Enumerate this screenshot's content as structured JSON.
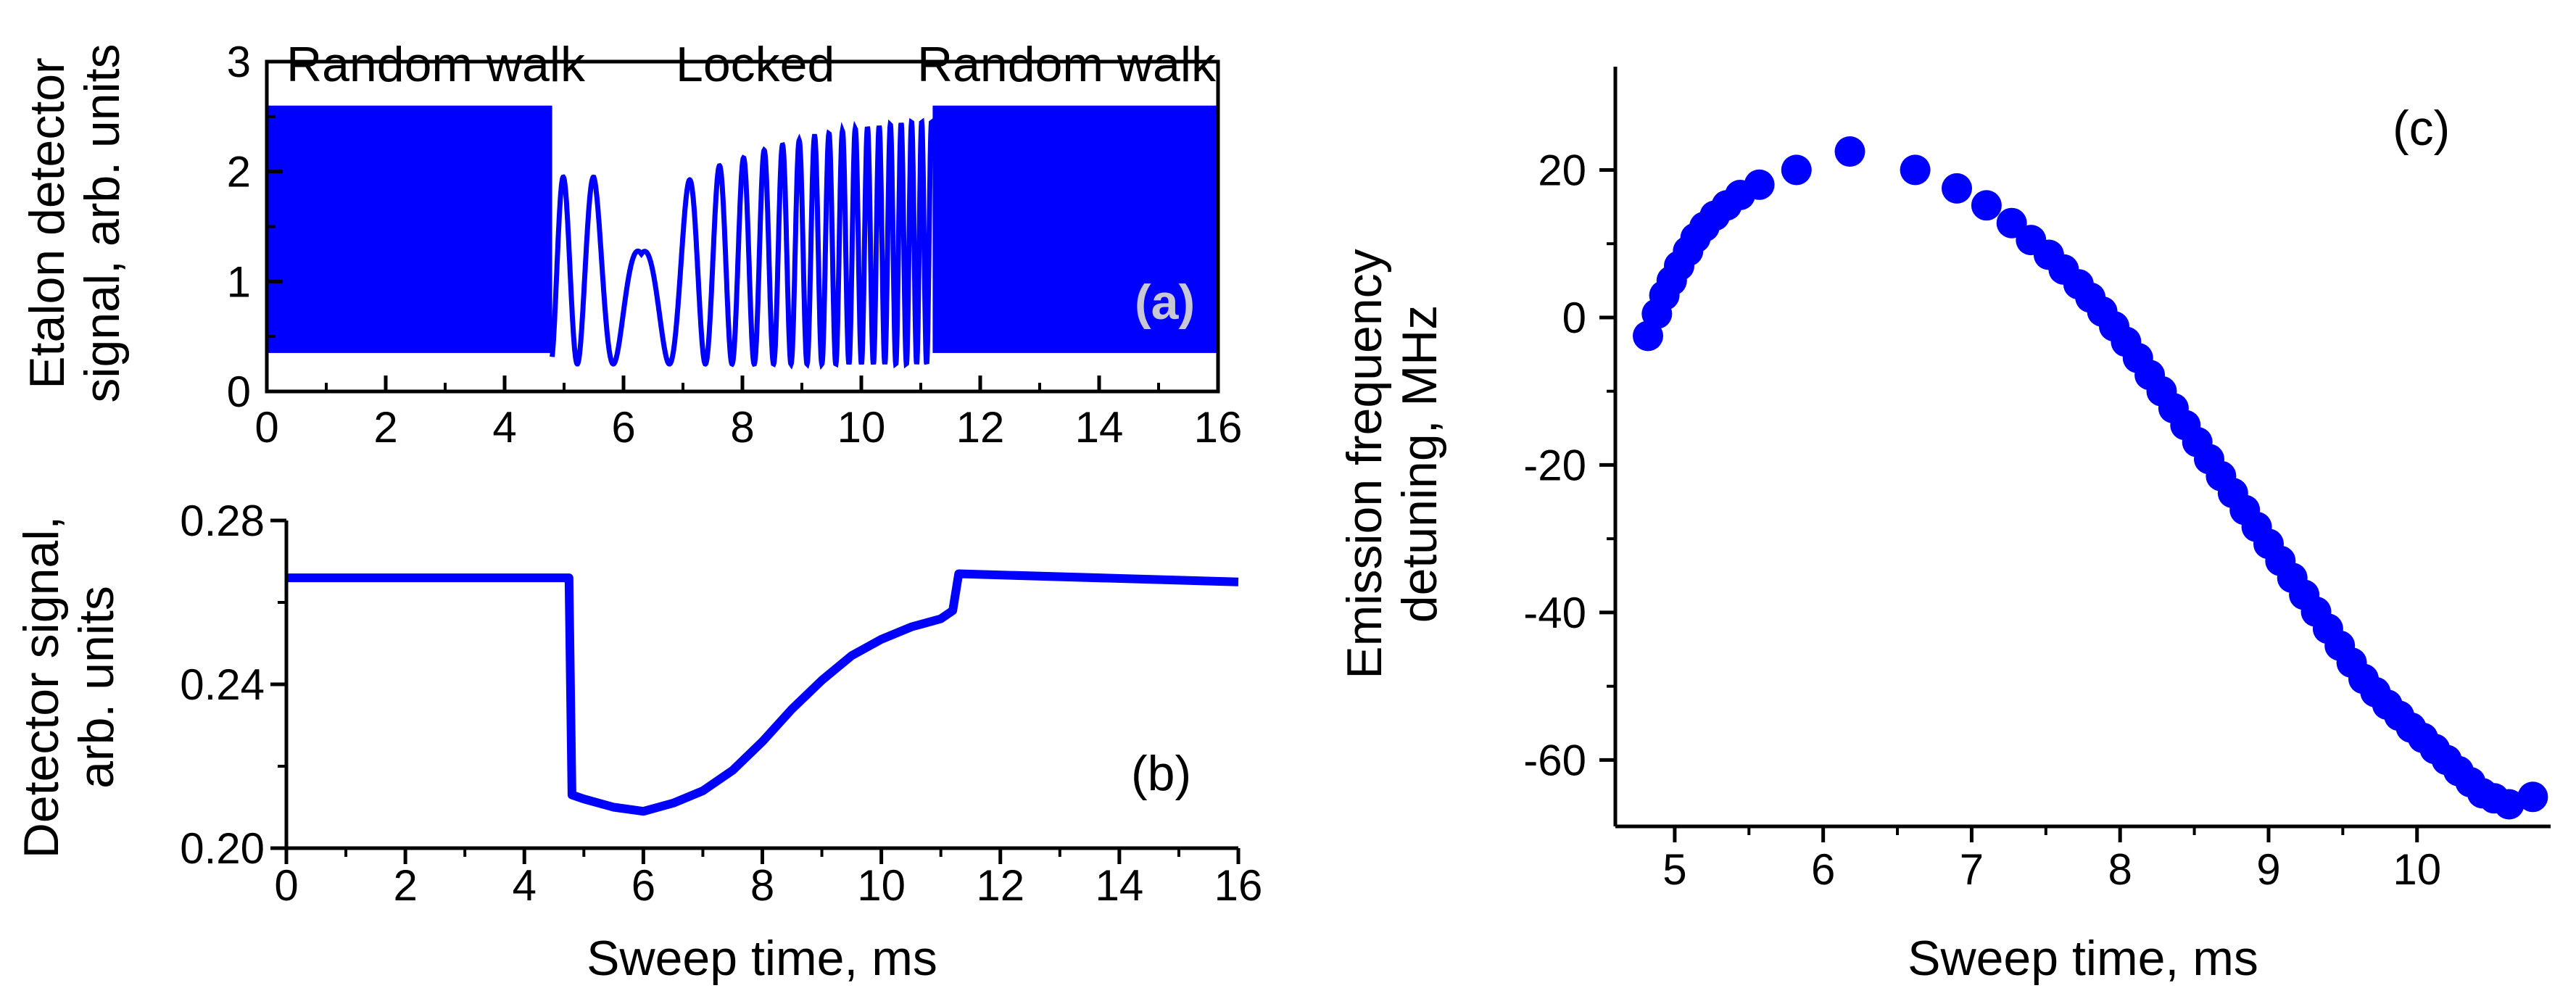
{
  "colors": {
    "series": "#0000ff",
    "axis": "#000000",
    "panel_a_tag": "#c8c8d4"
  },
  "chart_data": [
    {
      "panel": "(a)",
      "type": "line",
      "title": "",
      "xlabel": "",
      "ylabel_lines": [
        "Etalon detector",
        "signal, arb. units"
      ],
      "xlim": [
        0,
        16
      ],
      "ylim": [
        0,
        3
      ],
      "xticks": [
        0,
        2,
        4,
        6,
        8,
        10,
        12,
        14,
        16
      ],
      "xtick_labels": [
        "0",
        "2",
        "4",
        "6",
        "8",
        "10",
        "12",
        "14",
        "16"
      ],
      "yticks": [
        0,
        1,
        2,
        3
      ],
      "ytick_labels": [
        "0",
        "1",
        "2",
        "3"
      ],
      "annotations": [
        "Random walk",
        "Locked",
        "Random walk"
      ],
      "segments": [
        {
          "region": "random walk",
          "x_start": 0.0,
          "x_end": 4.8,
          "y_min": 0.35,
          "y_max": 2.6
        },
        {
          "region": "locked",
          "x_start": 4.8,
          "x_end": 11.2,
          "y_min": 0.25,
          "y_max": 2.45
        },
        {
          "region": "random walk",
          "x_start": 11.2,
          "x_end": 16.0,
          "y_min": 0.35,
          "y_max": 2.6
        }
      ],
      "locked_peaks": [
        {
          "x": 4.8,
          "y": 1.95
        },
        {
          "x": 5.5,
          "y": 1.95
        },
        {
          "x": 6.3,
          "y": 1.25
        },
        {
          "x": 7.2,
          "y": 2.0
        },
        {
          "x": 7.6,
          "y": 2.05
        },
        {
          "x": 8.0,
          "y": 2.12
        },
        {
          "x": 8.4,
          "y": 2.2
        },
        {
          "x": 8.8,
          "y": 2.26
        },
        {
          "x": 9.2,
          "y": 2.32
        },
        {
          "x": 9.6,
          "y": 2.36
        },
        {
          "x": 10.0,
          "y": 2.4
        },
        {
          "x": 10.4,
          "y": 2.42
        },
        {
          "x": 10.8,
          "y": 2.45
        },
        {
          "x": 11.2,
          "y": 2.45
        }
      ]
    },
    {
      "panel": "(b)",
      "type": "line",
      "title": "",
      "xlabel": "Sweep time, ms",
      "ylabel_lines": [
        "Detector signal,",
        "arb. units"
      ],
      "xlim": [
        0,
        16
      ],
      "ylim": [
        0.2,
        0.28
      ],
      "xticks": [
        0,
        2,
        4,
        6,
        8,
        10,
        12,
        14,
        16
      ],
      "xtick_labels": [
        "0",
        "2",
        "4",
        "6",
        "8",
        "10",
        "12",
        "14",
        "16"
      ],
      "yticks": [
        0.2,
        0.24,
        0.28
      ],
      "ytick_labels": [
        "0.20",
        "0.24",
        "0.28"
      ],
      "series": [
        {
          "name": "detector signal",
          "x": [
            0,
            4.75,
            4.8,
            5.0,
            5.5,
            6.0,
            6.5,
            7.0,
            7.5,
            8.0,
            8.5,
            9.0,
            9.5,
            10.0,
            10.5,
            11.0,
            11.2,
            11.3,
            16.0
          ],
          "y": [
            0.266,
            0.266,
            0.213,
            0.212,
            0.21,
            0.209,
            0.211,
            0.214,
            0.219,
            0.226,
            0.234,
            0.241,
            0.247,
            0.251,
            0.254,
            0.256,
            0.258,
            0.267,
            0.265
          ]
        }
      ]
    },
    {
      "panel": "(c)",
      "type": "scatter",
      "title": "",
      "xlabel": "Sweep time, ms",
      "ylabel_lines": [
        "Emission frequency",
        "detuning, MHz"
      ],
      "xlim": [
        4.6,
        10.9
      ],
      "ylim": [
        -69,
        34
      ],
      "xticks": [
        5,
        6,
        7,
        8,
        9,
        10
      ],
      "xtick_labels": [
        "5",
        "6",
        "7",
        "8",
        "9",
        "10"
      ],
      "yticks": [
        20,
        0,
        -20,
        -40,
        -60
      ],
      "ytick_labels": [
        "20",
        "0",
        "-20",
        "-40",
        "-60"
      ],
      "series": [
        {
          "name": "detuning",
          "x": [
            4.82,
            4.88,
            4.93,
            4.98,
            5.03,
            5.09,
            5.14,
            5.2,
            5.27,
            5.35,
            5.44,
            5.57,
            5.82,
            6.18,
            6.62,
            6.9,
            7.1,
            7.27,
            7.4,
            7.52,
            7.62,
            7.72,
            7.8,
            7.88,
            7.96,
            8.04,
            8.12,
            8.2,
            8.28,
            8.36,
            8.44,
            8.52,
            8.6,
            8.68,
            8.76,
            8.84,
            8.92,
            9.0,
            9.08,
            9.16,
            9.24,
            9.32,
            9.4,
            9.48,
            9.56,
            9.64,
            9.72,
            9.8,
            9.88,
            9.96,
            10.04,
            10.12,
            10.2,
            10.28,
            10.36,
            10.44,
            10.52,
            10.62,
            10.78
          ],
          "y": [
            -2.5,
            0.5,
            3.0,
            5.0,
            7.0,
            9.0,
            10.8,
            12.3,
            13.8,
            15.2,
            16.6,
            18.0,
            20.0,
            22.5,
            20.0,
            17.5,
            15.2,
            12.8,
            10.5,
            8.5,
            6.5,
            4.5,
            2.7,
            0.8,
            -1.2,
            -3.3,
            -5.5,
            -7.8,
            -10.0,
            -12.3,
            -14.6,
            -16.9,
            -19.2,
            -21.5,
            -23.8,
            -26.1,
            -28.4,
            -30.7,
            -33.0,
            -35.3,
            -37.6,
            -39.9,
            -42.2,
            -44.5,
            -46.8,
            -49.0,
            -50.8,
            -52.5,
            -54.0,
            -55.6,
            -57.0,
            -58.5,
            -60.0,
            -61.5,
            -63.0,
            -64.5,
            -65.2,
            -66.0,
            -65.0
          ]
        }
      ],
      "marker": "filled-circle"
    }
  ],
  "panels": {
    "a": {
      "tag": "(a)",
      "annotations": [
        "Random walk",
        "Locked",
        "Random walk"
      ]
    },
    "b": {
      "tag": "(b)"
    },
    "c": {
      "tag": "(c)"
    }
  }
}
